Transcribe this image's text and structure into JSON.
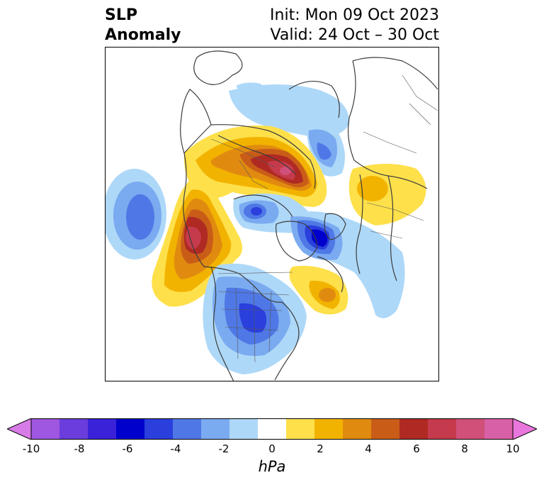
{
  "title": {
    "left_line1": "SLP",
    "left_line2": "Anomaly",
    "right_line1": "Init: Mon 09 Oct 2023",
    "right_line2": "Valid: 24 Oct – 30 Oct"
  },
  "colorbar": {
    "label": "hPa",
    "min": -10,
    "max": 10,
    "extend": "both",
    "ticks": [
      "-10",
      "-8",
      "-6",
      "-4",
      "-2",
      "0",
      "2",
      "4",
      "6",
      "8",
      "10"
    ],
    "colors": [
      "#d77be6",
      "#9f56e0",
      "#6a3ddc",
      "#3a22d8",
      "#0000cc",
      "#2a3fdc",
      "#4f78e6",
      "#7aaaf0",
      "#aed8f8",
      "#ffffff",
      "#fee04a",
      "#f2b300",
      "#e08b10",
      "#c95d18",
      "#b02a24",
      "#c53a4c",
      "#d0507a",
      "#d860a6",
      "#e876dc"
    ]
  },
  "map": {
    "projection": "polar-stereographic",
    "anomaly_centers": [
      {
        "region": "Scandinavia / Europe",
        "sign": "positive",
        "peak_hpa": 8
      },
      {
        "region": "Gulf of Alaska",
        "sign": "positive",
        "peak_hpa": 8
      },
      {
        "region": "North Pacific",
        "sign": "negative",
        "peak_hpa": -4
      },
      {
        "region": "Siberia",
        "sign": "negative",
        "peak_hpa": -4
      },
      {
        "region": "Beaufort Sea",
        "sign": "negative",
        "peak_hpa": -5
      },
      {
        "region": "Baffin Bay",
        "sign": "negative",
        "peak_hpa": -7
      },
      {
        "region": "Central United States",
        "sign": "negative",
        "peak_hpa": -4
      },
      {
        "region": "Eastern Canada",
        "sign": "positive",
        "peak_hpa": 3
      },
      {
        "region": "Central Asia",
        "sign": "positive",
        "peak_hpa": 2
      }
    ]
  }
}
